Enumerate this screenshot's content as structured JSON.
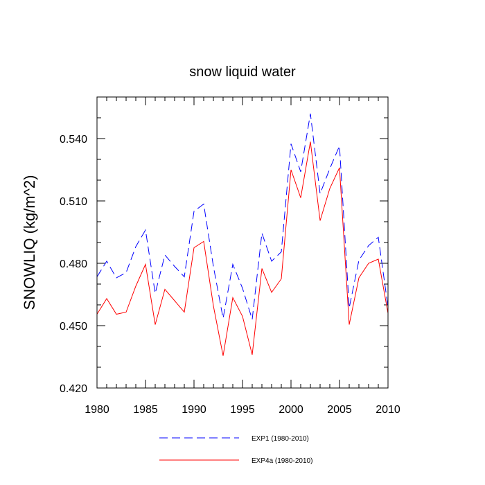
{
  "chart_data": {
    "type": "line",
    "title": "snow liquid water",
    "ylabel": "SNOWLIQ  (kg/m^2)",
    "xlabel": "",
    "xlim": [
      1980,
      2010
    ],
    "ylim": [
      0.42,
      0.56
    ],
    "x_ticks": [
      1980,
      1985,
      1990,
      1995,
      2000,
      2005,
      2010
    ],
    "y_ticks": [
      "0.420",
      "0.450",
      "0.480",
      "0.510",
      "0.540"
    ],
    "x": [
      1980,
      1981,
      1982,
      1983,
      1984,
      1985,
      1986,
      1987,
      1988,
      1989,
      1990,
      1991,
      1992,
      1993,
      1994,
      1995,
      1996,
      1997,
      1998,
      1999,
      2000,
      2001,
      2002,
      2003,
      2004,
      2005,
      2006,
      2007,
      2008,
      2009,
      2010
    ],
    "series": [
      {
        "name": "EXP1 (1980-2010)",
        "color": "#0000ff",
        "style": "dashed",
        "values": [
          0.4735,
          0.481,
          0.473,
          0.4755,
          0.488,
          0.496,
          0.4655,
          0.484,
          0.4785,
          0.4735,
          0.505,
          0.5085,
          0.4785,
          0.4535,
          0.4795,
          0.468,
          0.453,
          0.4945,
          0.481,
          0.4855,
          0.5375,
          0.524,
          0.552,
          0.5135,
          0.5255,
          0.5365,
          0.4585,
          0.4815,
          0.4885,
          0.4925,
          0.459
        ]
      },
      {
        "name": "EXP4a (1980-2010)",
        "color": "#ff0000",
        "style": "solid",
        "values": [
          0.4555,
          0.463,
          0.4555,
          0.4565,
          0.469,
          0.4795,
          0.4505,
          0.4675,
          0.462,
          0.4565,
          0.4875,
          0.4905,
          0.4595,
          0.4355,
          0.4635,
          0.4545,
          0.436,
          0.4775,
          0.466,
          0.4725,
          0.525,
          0.5115,
          0.5385,
          0.5005,
          0.516,
          0.526,
          0.4505,
          0.473,
          0.48,
          0.482,
          0.456
        ]
      }
    ],
    "grid": false,
    "legend_position": "bottom"
  }
}
